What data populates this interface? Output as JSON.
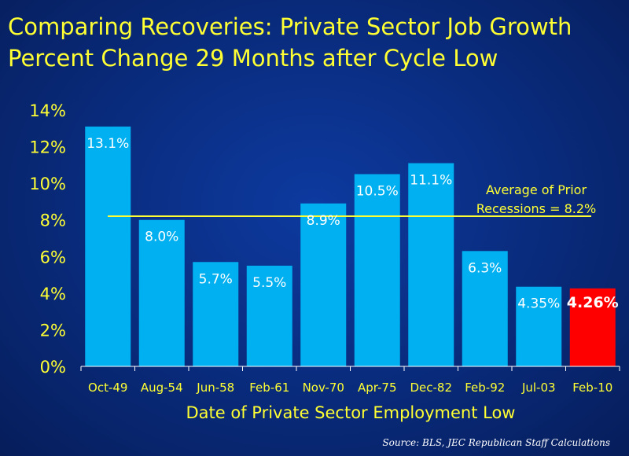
{
  "title_line1": "Comparing Recoveries:  Private Sector Job Growth",
  "title_line2": "Percent Change 29 Months after Cycle Low",
  "source": "Source:  BLS, JEC Republican Staff Calculations",
  "colors": {
    "bar": "#00b0f0",
    "highlight_bar": "#ff0000",
    "text": "#ffff33",
    "average_line": "#ffff33",
    "background": "#0a2a80"
  },
  "chart_data": {
    "type": "bar",
    "title": "Comparing Recoveries:  Private Sector Job Growth Percent Change 29 Months after Cycle Low",
    "xlabel": "Date of Private Sector Employment Low",
    "ylabel": "",
    "ylim": [
      0,
      14
    ],
    "yticks": [
      "0%",
      "2%",
      "4%",
      "6%",
      "8%",
      "10%",
      "12%",
      "14%"
    ],
    "categories": [
      "Oct-49",
      "Aug-54",
      "Jun-58",
      "Feb-61",
      "Nov-70",
      "Apr-75",
      "Dec-82",
      "Feb-92",
      "Jul-03",
      "Feb-10"
    ],
    "values": [
      13.1,
      8.0,
      5.7,
      5.5,
      8.9,
      10.5,
      11.1,
      6.3,
      4.35,
      4.26
    ],
    "labels": [
      "13.1%",
      "8.0%",
      "5.7%",
      "5.5%",
      "8.9%",
      "10.5%",
      "11.1%",
      "6.3%",
      "4.35%",
      "4.26%"
    ],
    "highlight_category": "Feb-10",
    "reference_line": {
      "value": 8.2,
      "label_line1": "Average of Prior",
      "label_line2": "Recessions = 8.2%"
    },
    "grid": false
  }
}
